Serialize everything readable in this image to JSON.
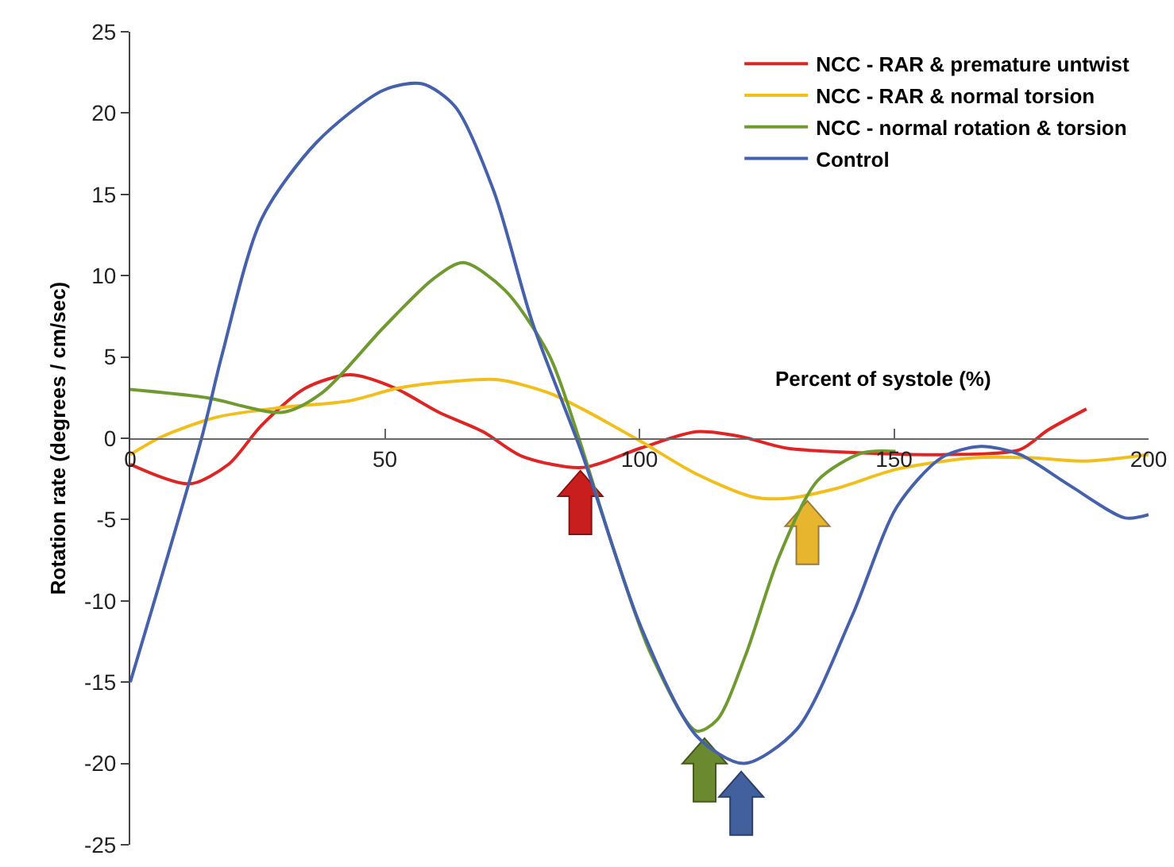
{
  "chart_data": {
    "type": "line",
    "xlabel": "Percent of systole (%)",
    "ylabel": "Rotation rate (degrees / cm/sec)",
    "xlim": [
      0,
      200
    ],
    "xticks": [
      0,
      50,
      100,
      150,
      200
    ],
    "ylim": [
      -25,
      25
    ],
    "yticks": [
      -25,
      -20,
      -15,
      -10,
      -5,
      0,
      5,
      10,
      15,
      20,
      25
    ],
    "grid": false,
    "legend": "top right",
    "marker": "none",
    "line_style": "solid",
    "series": [
      {
        "name": "NCC - RAR & premature untwist",
        "color": "#e02424",
        "x": [
          0,
          11.7,
          19.3,
          25.8,
          34.5,
          43.2,
          51.9,
          60.6,
          69.3,
          76.9,
          88.8,
          100.3,
          111.2,
          120,
          128.7,
          144,
          160.4,
          174.7,
          180.2,
          187.8
        ],
        "values": [
          -1.6,
          -2.8,
          -1.6,
          0.8,
          3.1,
          3.9,
          3.1,
          1.6,
          0.4,
          -1.1,
          -1.8,
          -0.6,
          0.4,
          0.1,
          -0.6,
          -0.9,
          -1.0,
          -0.7,
          0.5,
          1.8
        ]
      },
      {
        "name": "NCC - RAR & normal torsion",
        "color": "#f2be1a",
        "x": [
          0,
          6.2,
          17,
          30,
          43,
          52.8,
          63.6,
          72.3,
          82.1,
          88.8,
          100.3,
          111.2,
          122.2,
          128.7,
          138.5,
          150.6,
          165.9,
          176.8,
          187.7,
          200
        ],
        "values": [
          -1.0,
          0.1,
          1.3,
          1.9,
          2.3,
          3.1,
          3.5,
          3.6,
          2.8,
          1.8,
          -0.2,
          -2.2,
          -3.6,
          -3.7,
          -3.1,
          -1.9,
          -1.2,
          -1.2,
          -1.4,
          -1.0
        ]
      },
      {
        "name": "NCC - normal rotation & torsion",
        "color": "#6e9a30",
        "x": [
          0,
          14.9,
          30,
          37.7,
          49.7,
          59.5,
          65.4,
          73.6,
          82.3,
          87.7,
          94.7,
          102.3,
          111.2,
          115.3,
          120.9,
          127.4,
          135,
          143.8,
          150.3
        ],
        "values": [
          3.0,
          2.5,
          1.6,
          2.8,
          6.8,
          9.8,
          10.8,
          9.1,
          5.1,
          0.4,
          -6.6,
          -13.3,
          -18.0,
          -17.3,
          -13.3,
          -7.3,
          -2.6,
          -0.9,
          -0.8
        ]
      },
      {
        "name": "Control",
        "color": "#4561ab",
        "x": [
          0,
          14,
          18,
          25.8,
          36.6,
          49.7,
          57.3,
          63.8,
          71.4,
          79,
          88.8,
          100.3,
          111.2,
          120.5,
          130.9,
          141.8,
          150.6,
          159.3,
          167,
          174.7,
          184.5,
          195.4,
          200
        ],
        "values": [
          -15,
          0,
          5.1,
          13.5,
          18.2,
          21.4,
          21.8,
          20.4,
          15.2,
          7.1,
          -1.0,
          -11.6,
          -18.3,
          -20.0,
          -17.9,
          -10.9,
          -4.2,
          -1.2,
          -0.5,
          -1.0,
          -2.9,
          -4.9,
          -4.7
        ]
      }
    ]
  }
}
